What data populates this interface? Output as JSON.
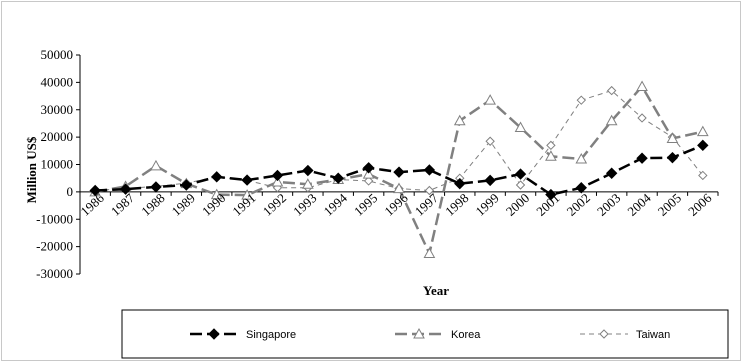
{
  "chart_data": {
    "type": "line",
    "xlabel": "Year",
    "ylabel": "Million US$",
    "ylim": [
      -30000,
      50000
    ],
    "yticks": [
      -30000,
      -20000,
      -10000,
      0,
      10000,
      20000,
      30000,
      40000,
      50000
    ],
    "categories": [
      "1986",
      "1987",
      "1988",
      "1989",
      "1990",
      "1991",
      "1992",
      "1993",
      "1994",
      "1995",
      "1996",
      "1997",
      "1998",
      "1999",
      "2000",
      "2001",
      "2002",
      "2003",
      "2004",
      "2005",
      "2006"
    ],
    "legend_position": "bottom",
    "series": [
      {
        "name": "Singapore",
        "color": "#000000",
        "marker": "filled-diamond",
        "line": "long-dash",
        "values": [
          500,
          1000,
          1800,
          2500,
          5500,
          4300,
          6000,
          7800,
          5000,
          8800,
          7200,
          8000,
          3000,
          4200,
          6500,
          -1000,
          1500,
          6800,
          12300,
          12500,
          17000
        ]
      },
      {
        "name": "Korea",
        "color": "#808080",
        "marker": "open-triangle",
        "line": "long-dash",
        "values": [
          0,
          2000,
          9500,
          3000,
          -1000,
          -1200,
          3600,
          2800,
          4500,
          6500,
          1200,
          -22500,
          26000,
          33500,
          23500,
          13000,
          12000,
          26000,
          38500,
          19500,
          22000
        ]
      },
      {
        "name": "Taiwan",
        "color": "#808080",
        "marker": "open-diamond",
        "line": "short-dash",
        "values": [
          500,
          1200,
          2000,
          3200,
          5500,
          4200,
          1500,
          1500,
          4500,
          4000,
          1200,
          500,
          5000,
          18500,
          2500,
          17000,
          33500,
          37000,
          27000,
          20000,
          6000
        ]
      }
    ]
  }
}
